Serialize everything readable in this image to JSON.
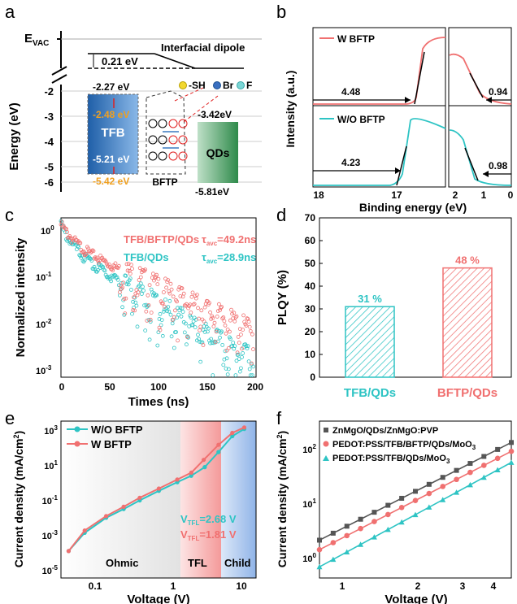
{
  "panels": {
    "a": "a",
    "b": "b",
    "c": "c",
    "d": "d",
    "e": "e",
    "f": "f"
  },
  "colors": {
    "pink": "#f07070",
    "teal": "#2ec4c4",
    "gray": "#555555",
    "blue": "#3a78c0",
    "green": "#3aa060",
    "orange": "#f0a020"
  },
  "panel_a": {
    "ylabel": "Energy (eV)",
    "evac": "E",
    "evac_sub": "VAC",
    "dipole_label": "Interfacial dipole",
    "dipole_value": "0.21 eV",
    "yticks": [
      "-2",
      "-3",
      "-4",
      "-5",
      "-6"
    ],
    "tfb": {
      "name": "TFB",
      "lumo": "-2.27 eV",
      "lumo_shift": "-2.48 eV",
      "homo": "-5.21 eV",
      "homo_shift": "-5.42 eV"
    },
    "bftp": {
      "name": "BFTP"
    },
    "qds": {
      "name": "QDs",
      "lumo": "-3.42eV",
      "homo": "-5.81eV"
    },
    "legend": [
      {
        "symbol": "-SH",
        "color": "#f2d830"
      },
      {
        "symbol": "Br",
        "color": "#3a6fc0"
      },
      {
        "symbol": "F",
        "color": "#7ad6d6"
      }
    ]
  },
  "chart_data": [
    {
      "panel": "b",
      "type": "line",
      "ylabel": "Intensity (a.u.)",
      "xlabel": "Binding energy (eV)",
      "xticks_left": [
        "18",
        "17"
      ],
      "xticks_right": [
        "2",
        "1",
        "0"
      ],
      "series": [
        {
          "name": "W BFTP",
          "cutoff": "4.48",
          "onset": "0.94"
        },
        {
          "name": "W/O BFTP",
          "cutoff": "4.23",
          "onset": "0.98"
        }
      ]
    },
    {
      "panel": "c",
      "type": "scatter",
      "xlabel": "Times (ns)",
      "ylabel": "Normalized intensity",
      "xlim": [
        0,
        200
      ],
      "xticks": [
        "0",
        "50",
        "100",
        "150",
        "200"
      ],
      "ylog": true,
      "ylim": [
        0.0005,
        1.4
      ],
      "yticks": [
        {
          "base": "10",
          "exp": "0"
        },
        {
          "base": "10",
          "exp": "-1"
        },
        {
          "base": "10",
          "exp": "-2"
        },
        {
          "base": "10",
          "exp": "-3"
        }
      ],
      "series": [
        {
          "name": "TFB/BFTP/QDs",
          "tau_label": "τ",
          "tau_sub": "avc",
          "tau_value": "=49.2ns",
          "amp1": 0.55,
          "tau1": 9,
          "amp2": 0.45,
          "tau2": 42,
          "floor": 0.004
        },
        {
          "name": "TFB/QDs",
          "tau_label": "τ",
          "tau_sub": "avc",
          "tau_value": "=28.9ns",
          "amp1": 0.62,
          "tau1": 7,
          "amp2": 0.38,
          "tau2": 32,
          "floor": 0.0025
        }
      ]
    },
    {
      "panel": "d",
      "type": "bar",
      "ylabel": "PLQY (%)",
      "ylim": [
        0,
        70
      ],
      "yticks": [
        "0",
        "10",
        "20",
        "30",
        "40",
        "50",
        "60",
        "70"
      ],
      "categories": [
        "TFB/QDs",
        "BFTP/QDs"
      ],
      "values": [
        31,
        48
      ],
      "labels": [
        "31 %",
        "48 %"
      ]
    },
    {
      "panel": "e",
      "type": "line",
      "xlabel": "Voltage (V)",
      "ylabel": "Current density (mA/cm",
      "ylabel_sup": "2",
      "ylabel_end": ")",
      "xlog": true,
      "xlim": [
        0.04,
        12
      ],
      "xticks": [
        "0.1",
        "1",
        "10"
      ],
      "ylog": true,
      "ylim": [
        1e-05,
        4000
      ],
      "yticks": [
        {
          "base": "10",
          "exp": "3"
        },
        {
          "base": "10",
          "exp": "1"
        },
        {
          "base": "10",
          "exp": "-1"
        },
        {
          "base": "10",
          "exp": "-3"
        },
        {
          "base": "10",
          "exp": "-5"
        }
      ],
      "regions": [
        "Ohmic",
        "TFL",
        "Child"
      ],
      "vtfl": [
        {
          "label": "V",
          "sub": "TFL",
          "value": "=2.68 V"
        },
        {
          "label": "V",
          "sub": "TFL",
          "value": "=1.81 V"
        }
      ],
      "series": [
        {
          "name": "W/O BFTP",
          "x": [
            0.05,
            0.08,
            0.15,
            0.25,
            0.4,
            0.7,
            1.2,
            1.8,
            2.68,
            4,
            6,
            8.5
          ],
          "y": [
            0.0003,
            0.003,
            0.02,
            0.06,
            0.18,
            0.6,
            1.8,
            4,
            12,
            80,
            600,
            1500
          ]
        },
        {
          "name": "W BFTP",
          "x": [
            0.05,
            0.08,
            0.15,
            0.25,
            0.4,
            0.7,
            1.2,
            1.81,
            2.6,
            4,
            6,
            8.5
          ],
          "y": [
            0.0003,
            0.004,
            0.025,
            0.08,
            0.25,
            0.8,
            2.5,
            6,
            30,
            200,
            900,
            1800
          ]
        }
      ]
    },
    {
      "panel": "f",
      "type": "line",
      "xlabel": "Voltage (V)",
      "ylabel": "Current density (mA/cm",
      "ylabel_sup": "2",
      "ylabel_end": ")",
      "xlog": true,
      "xlim": [
        0.65,
        4.6
      ],
      "xticks": [
        "1",
        "2",
        "3",
        "4"
      ],
      "ylog": true,
      "ylim": [
        0.3,
        400
      ],
      "yticks": [
        {
          "base": "10",
          "exp": "2"
        },
        {
          "base": "10",
          "exp": "1"
        },
        {
          "base": "10",
          "exp": "0"
        }
      ],
      "series": [
        {
          "name": "ZnMgO/QDs/ZnMgO:PVP",
          "name_sub": "",
          "x": [
            0.65,
            4.6
          ],
          "y": [
            1.7,
            150
          ]
        },
        {
          "name": "PEDOT:PSS/TFB/BFTP/QDs/MoO",
          "name_sub": "3",
          "x": [
            0.65,
            4.6
          ],
          "y": [
            1.1,
            100
          ]
        },
        {
          "name": "PEDOT:PSS/TFB/QDs/MoO",
          "name_sub": "3",
          "x": [
            0.65,
            4.6
          ],
          "y": [
            0.5,
            60
          ]
        }
      ]
    }
  ]
}
